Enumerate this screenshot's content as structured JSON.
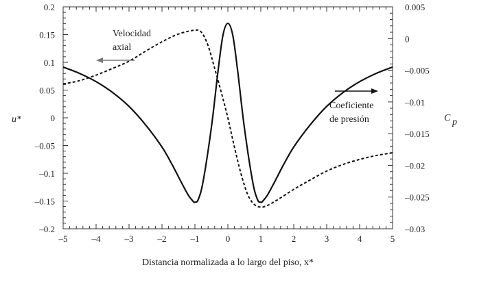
{
  "chart_data": {
    "type": "line",
    "xlabel": "Distancia normalizada a lo largo del piso, x*",
    "ylabel_left": "u*",
    "ylabel_right": "C",
    "ylabel_right_sub": "p",
    "xlim": [
      -5,
      5
    ],
    "ylim_left": [
      -0.2,
      0.2
    ],
    "ylim_right": [
      -0.03,
      0.005
    ],
    "x_ticks": [
      -5,
      -4,
      -3,
      -2,
      -1,
      0,
      1,
      2,
      3,
      4,
      5
    ],
    "x_tick_labels": [
      "–5",
      "–4",
      "–3",
      "–2",
      "–1",
      "0",
      "1",
      "2",
      "3",
      "4",
      "5"
    ],
    "y_left_ticks": [
      0.2,
      0.15,
      0.1,
      0.05,
      0,
      -0.05,
      -0.1,
      -0.15,
      -0.2
    ],
    "y_left_tick_labels": [
      "0.2",
      "0.15",
      "0.1",
      "0.05",
      "0",
      "–0.05",
      "–0.1",
      "–0.15",
      "–0.2"
    ],
    "y_right_ticks": [
      0.005,
      0,
      -0.005,
      -0.01,
      -0.015,
      -0.02,
      -0.025,
      -0.03
    ],
    "y_right_tick_labels": [
      "0.005",
      "0",
      "–0.005",
      "–0.01",
      "–0.015",
      "–0.02",
      "–0.025",
      "–0.03"
    ],
    "grid": false,
    "series": [
      {
        "name": "Velocidad axial",
        "axis": "left",
        "style": "dashed",
        "x": [
          -5,
          -4.5,
          -4,
          -3.5,
          -3,
          -2.5,
          -2,
          -1.5,
          -1,
          -0.8,
          -0.6,
          -0.4,
          -0.2,
          0,
          0.2,
          0.4,
          0.6,
          0.8,
          1,
          1.2,
          1.5,
          2,
          2.5,
          3,
          3.5,
          4,
          4.5,
          5
        ],
        "values": [
          0.061,
          0.067,
          0.077,
          0.089,
          0.102,
          0.12,
          0.137,
          0.151,
          0.158,
          0.154,
          0.13,
          0.089,
          0.046,
          0.0,
          -0.053,
          -0.101,
          -0.138,
          -0.156,
          -0.161,
          -0.158,
          -0.148,
          -0.129,
          -0.112,
          -0.096,
          -0.084,
          -0.075,
          -0.068,
          -0.063
        ]
      },
      {
        "name": "Coeficiente de presión",
        "axis": "right",
        "style": "solid",
        "x": [
          -5,
          -4.5,
          -4,
          -3.5,
          -3,
          -2.5,
          -2,
          -1.7,
          -1.4,
          -1.2,
          -1.05,
          -1,
          -0.9,
          -0.75,
          -0.5,
          -0.3,
          -0.15,
          0,
          0.15,
          0.3,
          0.5,
          0.75,
          0.9,
          1,
          1.05,
          1.2,
          1.4,
          1.7,
          2,
          2.5,
          3,
          3.5,
          4,
          4.5,
          5
        ],
        "values": [
          -0.0045,
          -0.0055,
          -0.0068,
          -0.0085,
          -0.0107,
          -0.0136,
          -0.0171,
          -0.0198,
          -0.0228,
          -0.0247,
          -0.0257,
          -0.0258,
          -0.0254,
          -0.0225,
          -0.014,
          -0.0052,
          0.0005,
          0.0024,
          0.0005,
          -0.0052,
          -0.014,
          -0.0225,
          -0.0254,
          -0.0258,
          -0.0257,
          -0.0247,
          -0.0228,
          -0.0198,
          -0.0171,
          -0.0136,
          -0.0107,
          -0.0085,
          -0.0068,
          -0.0055,
          -0.0045
        ]
      }
    ],
    "annotations": [
      {
        "lines": [
          "Velocidad",
          "axial"
        ],
        "arrow": "left"
      },
      {
        "lines": [
          "Coeficiente",
          "de presión"
        ],
        "arrow": "right"
      }
    ]
  }
}
